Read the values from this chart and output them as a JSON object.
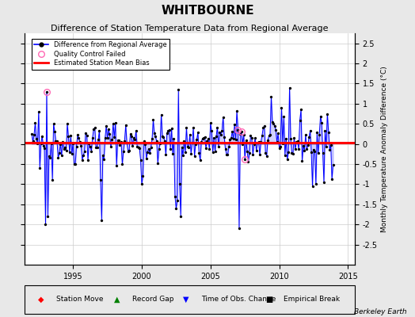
{
  "title": "WHITBOURNE",
  "subtitle": "Difference of Station Temperature Data from Regional Average",
  "ylabel_right": "Monthly Temperature Anomaly Difference (°C)",
  "bias_value": 0.03,
  "xlim": [
    1991.5,
    2015.5
  ],
  "ylim": [
    -3.0,
    2.75
  ],
  "yticks": [
    -2.5,
    -2,
    -1.5,
    -1,
    -0.5,
    0,
    0.5,
    1,
    1.5,
    2,
    2.5
  ],
  "xticks": [
    1995,
    2000,
    2005,
    2010,
    2015
  ],
  "background_color": "#e8e8e8",
  "plot_bg_color": "#ffffff",
  "line_color": "#0000ff",
  "bias_color": "#ff0000",
  "title_fontsize": 11,
  "subtitle_fontsize": 8,
  "tick_fontsize": 7,
  "berkeley_earth_text": "Berkeley Earth",
  "seed": 42,
  "n_points": 264,
  "start_year": 1992.0,
  "qc_failed_color": "#ff69b4",
  "fill_alpha": 0.18
}
